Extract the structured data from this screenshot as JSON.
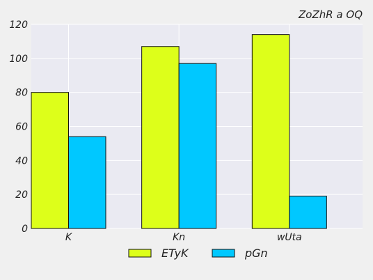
{
  "chart_data": {
    "type": "bar",
    "title": "ZoZhR a OQ",
    "categories": [
      "K",
      "Kn",
      "wUta"
    ],
    "series": [
      {
        "name": "ETyK",
        "values": [
          80,
          107,
          114
        ],
        "color": "#ddff1a"
      },
      {
        "name": "pGn",
        "values": [
          54,
          97,
          19
        ],
        "color": "#00c8ff"
      }
    ],
    "ylim": [
      0,
      120
    ],
    "yticks": [
      0,
      20,
      40,
      60,
      80,
      100,
      120
    ],
    "grid": true,
    "legend_position": "bottom-center",
    "background_color": "#eaeaf2",
    "page_color": "#f0f0f0"
  }
}
